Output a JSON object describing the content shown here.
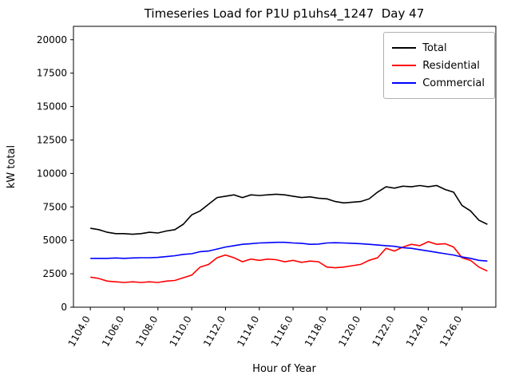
{
  "chart_data": {
    "type": "line",
    "title": "Timeseries Load for P1U p1uhs4_1247  Day 47",
    "xlabel": "Hour of Year",
    "ylabel": "kW total",
    "xlim": [
      1103,
      1128
    ],
    "ylim": [
      0,
      21000
    ],
    "grid": false,
    "legend_position": "upper right",
    "x_ticks": {
      "values": [
        1104,
        1106,
        1108,
        1110,
        1112,
        1114,
        1116,
        1118,
        1120,
        1122,
        1124,
        1126
      ],
      "labels": [
        "1104.0",
        "1106.0",
        "1108.0",
        "1110.0",
        "1112.0",
        "1114.0",
        "1116.0",
        "1118.0",
        "1120.0",
        "1122.0",
        "1124.0",
        "1126.0"
      ]
    },
    "y_ticks": {
      "values": [
        0,
        2500,
        5000,
        7500,
        10000,
        12500,
        15000,
        17500,
        20000
      ],
      "labels": [
        "0",
        "2500",
        "5000",
        "7500",
        "10000",
        "12500",
        "15000",
        "17500",
        "20000"
      ]
    },
    "x": [
      1104,
      1104.5,
      1105,
      1105.5,
      1106,
      1106.5,
      1107,
      1107.5,
      1108,
      1108.5,
      1109,
      1109.5,
      1110,
      1110.5,
      1111,
      1111.5,
      1112,
      1112.5,
      1113,
      1113.5,
      1114,
      1114.5,
      1115,
      1115.5,
      1116,
      1116.5,
      1117,
      1117.5,
      1118,
      1118.5,
      1119,
      1119.5,
      1120,
      1120.5,
      1121,
      1121.5,
      1122,
      1122.5,
      1123,
      1123.5,
      1124,
      1124.5,
      1125,
      1125.5,
      1126,
      1126.5,
      1127,
      1127.5
    ],
    "series": [
      {
        "name": "Total",
        "color": "#000000",
        "values": [
          5900,
          5800,
          5600,
          5500,
          5500,
          5450,
          5500,
          5600,
          5550,
          5700,
          5800,
          6200,
          6900,
          7200,
          7700,
          8200,
          8300,
          8400,
          8200,
          8400,
          8350,
          8400,
          8450,
          8400,
          8300,
          8200,
          8250,
          8150,
          8100,
          7900,
          7800,
          7850,
          7900,
          8100,
          8600,
          9000,
          8900,
          9050,
          9000,
          9100,
          9000,
          9100,
          8800,
          8600,
          7600,
          7200,
          6500,
          6200
        ]
      },
      {
        "name": "Residential",
        "color": "#ff0000",
        "values": [
          2250,
          2150,
          1950,
          1900,
          1850,
          1900,
          1850,
          1900,
          1850,
          1950,
          2000,
          2200,
          2400,
          3000,
          3200,
          3700,
          3900,
          3700,
          3400,
          3600,
          3500,
          3600,
          3550,
          3400,
          3500,
          3350,
          3450,
          3400,
          3000,
          2950,
          3000,
          3100,
          3200,
          3500,
          3700,
          4400,
          4200,
          4500,
          4700,
          4600,
          4900,
          4700,
          4750,
          4500,
          3700,
          3500,
          3000,
          2700
        ]
      },
      {
        "name": "Commercial",
        "color": "#0000ff",
        "values": [
          3650,
          3650,
          3650,
          3680,
          3650,
          3680,
          3700,
          3700,
          3720,
          3780,
          3850,
          3950,
          4000,
          4150,
          4200,
          4350,
          4500,
          4600,
          4700,
          4750,
          4800,
          4820,
          4850,
          4850,
          4800,
          4780,
          4700,
          4720,
          4800,
          4820,
          4800,
          4780,
          4750,
          4700,
          4650,
          4600,
          4550,
          4450,
          4400,
          4300,
          4200,
          4100,
          4000,
          3900,
          3750,
          3650,
          3500,
          3450
        ]
      }
    ]
  }
}
